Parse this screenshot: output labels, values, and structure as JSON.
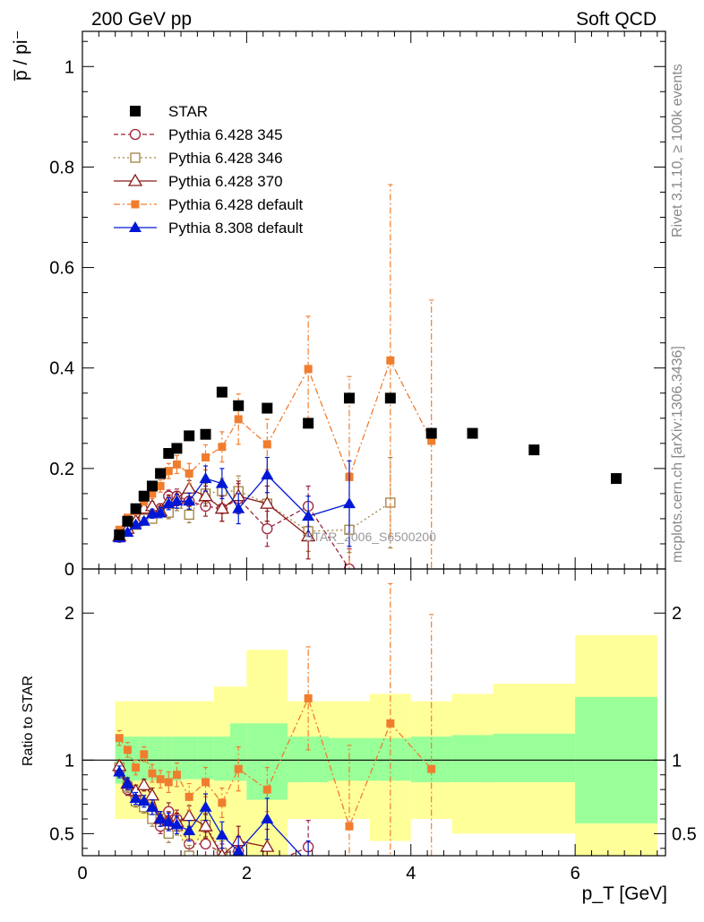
{
  "header": {
    "left": "200 GeV pp",
    "right": "Soft QCD",
    "side_top": "Rivet 3.1.10, ≥ 100k events",
    "side_bottom": "mcplots.cern.ch [arXiv:1306.3436]"
  },
  "colors": {
    "STAR": "#000000",
    "Pythia 6.428 345": "#a0223a",
    "Pythia 6.428 346": "#a08040",
    "Pythia 6.428 370": "#8b1a1a",
    "Pythia 6.428 default": "#f07d2e",
    "Pythia 8.308 default": "#0018d6",
    "band_inner": "#99ff99",
    "band_outer": "#ffff99"
  },
  "chart_data": [
    {
      "type": "scatter",
      "title": "",
      "ylabel": "p̅ / pi⁻",
      "xlabel": "",
      "xlim": [
        0,
        7.1
      ],
      "ylim": [
        0,
        1.07
      ],
      "yticks": [
        0,
        0.2,
        0.4,
        0.6,
        0.8,
        1
      ],
      "ytick_labels": [
        "0",
        "0.2",
        "0.4",
        "0.6",
        "0.8",
        "1"
      ],
      "annotation": "STAR_2006_S6500200",
      "legend_placement": "top-left",
      "series": [
        {
          "name": "STAR",
          "marker": "square-filled",
          "line": "none",
          "x": [
            0.45,
            0.55,
            0.65,
            0.75,
            0.85,
            0.95,
            1.05,
            1.15,
            1.3,
            1.5,
            1.7,
            1.9,
            2.25,
            2.75,
            3.25,
            3.75,
            4.25,
            4.75,
            5.5,
            6.5
          ],
          "y": [
            0.068,
            0.095,
            0.12,
            0.145,
            0.165,
            0.19,
            0.23,
            0.24,
            0.265,
            0.268,
            0.352,
            0.325,
            0.32,
            0.29,
            0.34,
            0.34,
            0.27,
            0.27,
            0.237,
            0.18
          ]
        },
        {
          "name": "Pythia 6.428 345",
          "marker": "circle-open",
          "line": "dashed",
          "x": [
            0.45,
            0.55,
            0.65,
            0.75,
            0.85,
            0.95,
            1.05,
            1.15,
            1.3,
            1.5,
            1.7,
            1.9,
            2.25,
            2.75,
            3.25
          ],
          "y": [
            0.063,
            0.075,
            0.09,
            0.1,
            0.105,
            0.12,
            0.145,
            0.145,
            0.135,
            0.125,
            0.12,
            0.14,
            0.08,
            0.125,
            0.0
          ],
          "err": [
            0.004,
            0.005,
            0.006,
            0.007,
            0.009,
            0.01,
            0.012,
            0.014,
            0.016,
            0.02,
            0.025,
            0.03,
            0.035,
            0.04,
            0.04
          ]
        },
        {
          "name": "Pythia 6.428 346",
          "marker": "square-open",
          "line": "dotted",
          "x": [
            0.45,
            0.55,
            0.65,
            0.75,
            0.85,
            0.95,
            1.05,
            1.15,
            1.3,
            1.5,
            1.7,
            1.9,
            2.25,
            2.75,
            3.25,
            3.75
          ],
          "y": [
            0.065,
            0.078,
            0.088,
            0.1,
            0.1,
            0.115,
            0.112,
            0.13,
            0.108,
            0.15,
            0.155,
            0.155,
            0.13,
            0.075,
            0.078,
            0.132
          ],
          "err": [
            0.004,
            0.005,
            0.006,
            0.007,
            0.009,
            0.01,
            0.012,
            0.014,
            0.016,
            0.02,
            0.025,
            0.03,
            0.035,
            0.04,
            0.045,
            0.09
          ]
        },
        {
          "name": "Pythia 6.428 370",
          "marker": "triangle-open",
          "line": "solid",
          "x": [
            0.45,
            0.55,
            0.65,
            0.75,
            0.85,
            0.95,
            1.05,
            1.15,
            1.3,
            1.5,
            1.7,
            1.9,
            2.25,
            2.75
          ],
          "y": [
            0.065,
            0.08,
            0.095,
            0.12,
            0.125,
            0.115,
            0.135,
            0.14,
            0.16,
            0.145,
            0.12,
            0.145,
            0.13,
            0.065
          ],
          "err": [
            0.004,
            0.005,
            0.006,
            0.007,
            0.009,
            0.01,
            0.012,
            0.014,
            0.016,
            0.02,
            0.025,
            0.03,
            0.035,
            0.045
          ]
        },
        {
          "name": "Pythia 6.428 default",
          "marker": "square-filled-small",
          "line": "dashdot",
          "x": [
            0.45,
            0.55,
            0.65,
            0.75,
            0.85,
            0.95,
            1.05,
            1.15,
            1.3,
            1.5,
            1.7,
            1.9,
            2.25,
            2.75,
            3.25,
            3.75,
            4.25
          ],
          "y": [
            0.078,
            0.102,
            0.115,
            0.135,
            0.15,
            0.165,
            0.195,
            0.208,
            0.19,
            0.222,
            0.243,
            0.298,
            0.248,
            0.398,
            0.183,
            0.415,
            0.255
          ],
          "err": [
            0.005,
            0.006,
            0.007,
            0.008,
            0.01,
            0.012,
            0.015,
            0.018,
            0.02,
            0.025,
            0.03,
            0.05,
            0.05,
            0.105,
            0.2,
            0.35,
            0.28
          ]
        },
        {
          "name": "Pythia 8.308 default",
          "marker": "triangle-filled",
          "line": "solid",
          "x": [
            0.45,
            0.55,
            0.65,
            0.75,
            0.85,
            0.95,
            1.05,
            1.15,
            1.3,
            1.5,
            1.7,
            1.9,
            2.25,
            2.75,
            3.25
          ],
          "y": [
            0.062,
            0.073,
            0.088,
            0.095,
            0.11,
            0.112,
            0.13,
            0.135,
            0.135,
            0.18,
            0.17,
            0.12,
            0.187,
            0.105,
            0.13
          ],
          "err": [
            0.004,
            0.005,
            0.006,
            0.007,
            0.009,
            0.01,
            0.012,
            0.014,
            0.016,
            0.025,
            0.03,
            0.03,
            0.035,
            0.04,
            0.085
          ]
        }
      ]
    },
    {
      "type": "scatter",
      "title": "",
      "ylabel": "Ratio to STAR",
      "xlabel": "p_T [GeV]",
      "xlim": [
        0,
        7.1
      ],
      "ylim": [
        0.35,
        2.3
      ],
      "xticks": [
        0,
        2,
        4,
        6
      ],
      "xtick_labels": [
        "0",
        "2",
        "4",
        "6"
      ],
      "yticks": [
        0.5,
        1,
        2
      ],
      "ytick_labels": [
        "0.5",
        "1",
        "2"
      ],
      "bands": {
        "edges": [
          0.4,
          0.5,
          0.6,
          0.7,
          0.8,
          0.9,
          1.0,
          1.1,
          1.2,
          1.4,
          1.6,
          1.8,
          2.0,
          2.5,
          3.0,
          3.5,
          4.0,
          4.5,
          5.0,
          6.0,
          7.0
        ],
        "inner_lo": [
          0.84,
          0.85,
          0.86,
          0.86,
          0.86,
          0.86,
          0.86,
          0.86,
          0.87,
          0.87,
          0.86,
          0.86,
          0.73,
          0.85,
          0.86,
          0.86,
          0.85,
          0.85,
          0.85,
          0.57
        ],
        "inner_hi": [
          1.16,
          1.16,
          1.16,
          1.16,
          1.16,
          1.16,
          1.16,
          1.16,
          1.16,
          1.16,
          1.16,
          1.25,
          1.25,
          1.16,
          1.15,
          1.15,
          1.16,
          1.17,
          1.18,
          1.43
        ],
        "outer_lo": [
          0.6,
          0.6,
          0.6,
          0.6,
          0.6,
          0.6,
          0.6,
          0.6,
          0.45,
          0.45,
          0.45,
          0.45,
          0.25,
          0.6,
          0.6,
          0.45,
          0.6,
          0.5,
          0.5,
          0.2
        ],
        "outer_hi": [
          1.4,
          1.4,
          1.4,
          1.4,
          1.4,
          1.4,
          1.4,
          1.4,
          1.4,
          1.4,
          1.5,
          1.5,
          1.75,
          1.4,
          1.4,
          1.45,
          1.4,
          1.45,
          1.52,
          1.85
        ]
      },
      "series": [
        {
          "name": "Pythia 6.428 345",
          "x": [
            0.45,
            0.55,
            0.65,
            0.75,
            0.85,
            0.95,
            1.05,
            1.15,
            1.3,
            1.5,
            1.7,
            1.9,
            2.25,
            2.75
          ],
          "y": [
            0.93,
            0.8,
            0.75,
            0.7,
            0.65,
            0.55,
            0.65,
            0.6,
            0.43,
            0.43,
            0.37,
            0.38,
            0.28,
            0.41
          ],
          "err": [
            0.04,
            0.04,
            0.04,
            0.04,
            0.05,
            0.05,
            0.06,
            0.06,
            0.07,
            0.08,
            0.08,
            0.1,
            0.12,
            0.18
          ]
        },
        {
          "name": "Pythia 6.428 346",
          "x": [
            0.45,
            0.55,
            0.65,
            0.75,
            0.85,
            0.95,
            1.05,
            1.15,
            1.3,
            1.5,
            1.7,
            1.9
          ],
          "y": [
            0.95,
            0.82,
            0.72,
            0.68,
            0.6,
            0.6,
            0.5,
            0.55,
            0.35,
            0.56,
            0.37,
            0.34
          ],
          "err": [
            0.04,
            0.04,
            0.04,
            0.04,
            0.05,
            0.05,
            0.06,
            0.06,
            0.07,
            0.08,
            0.08,
            0.1
          ]
        },
        {
          "name": "Pythia 6.428 370",
          "x": [
            0.45,
            0.55,
            0.65,
            0.75,
            0.85,
            0.95,
            1.05,
            1.15,
            1.3,
            1.5,
            1.7,
            1.9,
            2.25
          ],
          "y": [
            0.96,
            0.84,
            0.79,
            0.83,
            0.76,
            0.6,
            0.59,
            0.58,
            0.62,
            0.55,
            0.35,
            0.45,
            0.41
          ],
          "err": [
            0.04,
            0.04,
            0.04,
            0.04,
            0.05,
            0.05,
            0.06,
            0.06,
            0.07,
            0.08,
            0.08,
            0.1,
            0.12
          ]
        },
        {
          "name": "Pythia 6.428 default",
          "x": [
            0.45,
            0.55,
            0.65,
            0.75,
            0.85,
            0.95,
            1.05,
            1.15,
            1.3,
            1.5,
            1.7,
            1.9,
            2.25,
            2.75,
            3.25,
            3.75,
            4.25
          ],
          "y": [
            1.15,
            1.07,
            0.95,
            1.04,
            0.91,
            0.87,
            0.85,
            0.9,
            0.75,
            0.85,
            0.71,
            0.94,
            0.8,
            1.42,
            0.55,
            1.25,
            0.94
          ],
          "err": [
            0.05,
            0.05,
            0.05,
            0.05,
            0.06,
            0.06,
            0.07,
            0.08,
            0.09,
            0.1,
            0.1,
            0.15,
            0.15,
            0.35,
            0.55,
            0.95,
            1.05
          ]
        },
        {
          "name": "Pythia 8.308 default",
          "x": [
            0.45,
            0.55,
            0.65,
            0.75,
            0.85,
            0.95,
            1.05,
            1.15,
            1.3,
            1.5,
            1.7,
            1.9,
            2.25,
            2.75
          ],
          "y": [
            0.92,
            0.84,
            0.74,
            0.72,
            0.68,
            0.6,
            0.58,
            0.56,
            0.52,
            0.68,
            0.49,
            0.38,
            0.6,
            0.3
          ],
          "err": [
            0.04,
            0.04,
            0.04,
            0.04,
            0.05,
            0.05,
            0.06,
            0.06,
            0.07,
            0.09,
            0.09,
            0.1,
            0.14,
            0.15
          ]
        }
      ]
    }
  ]
}
